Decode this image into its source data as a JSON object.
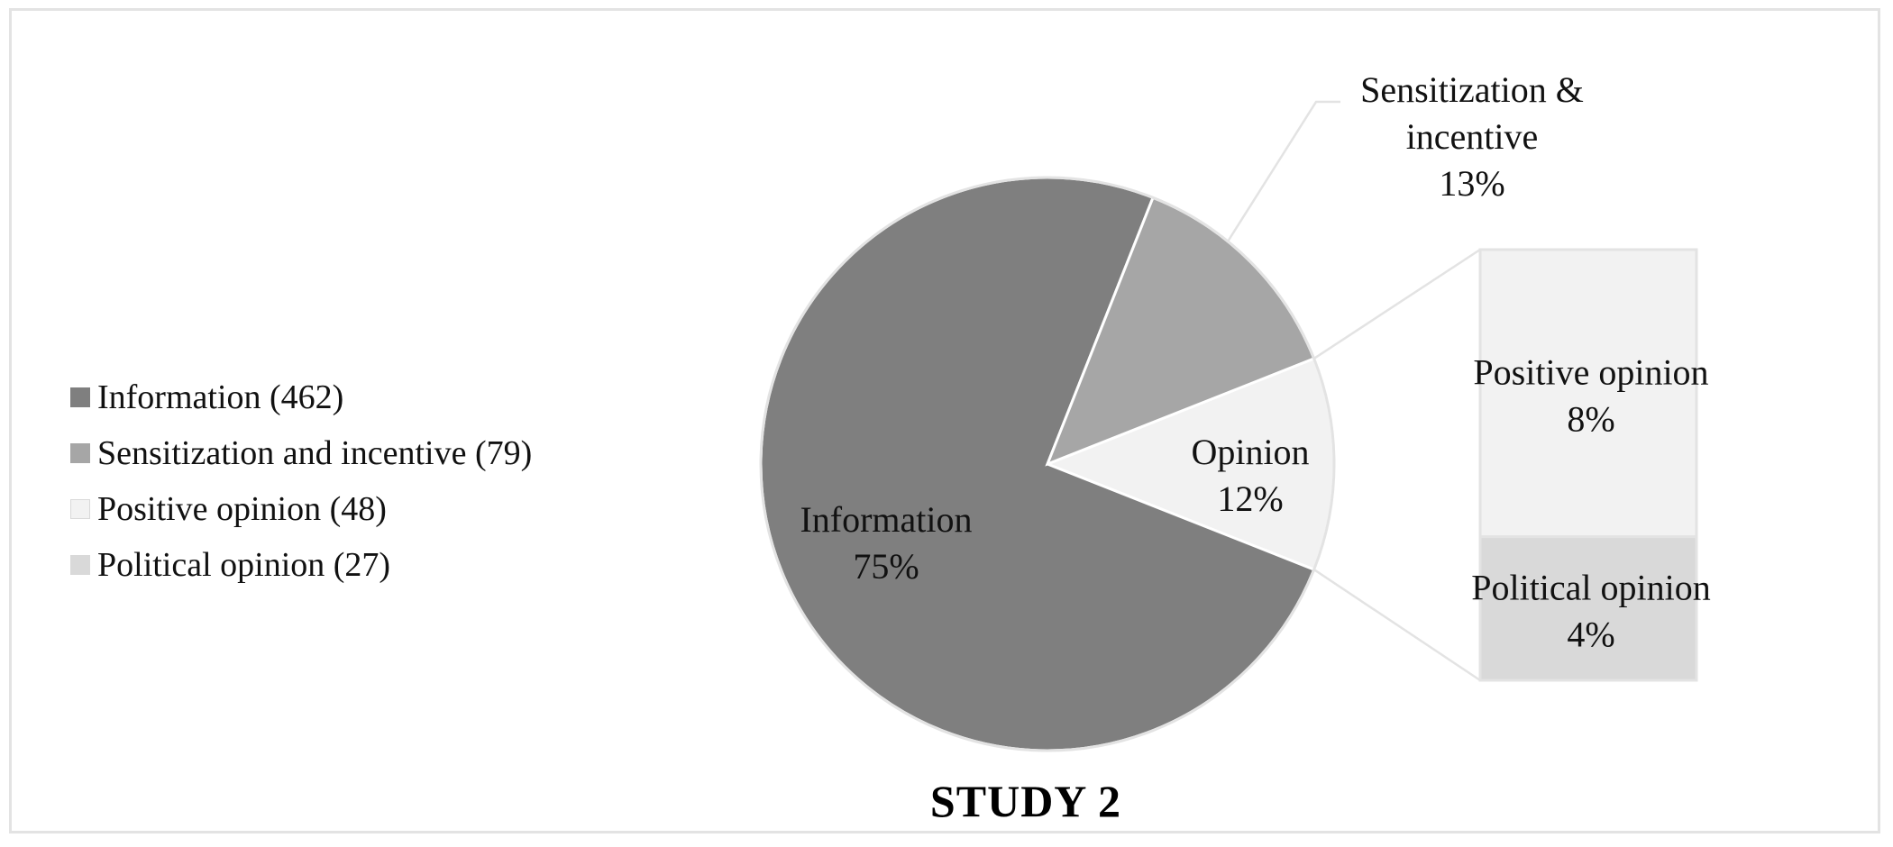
{
  "chart_data": {
    "type": "pie",
    "title": "STUDY 2",
    "subtype": "bar-of-pie",
    "pie": {
      "slices": [
        {
          "key": "information",
          "label": "Information",
          "percent_label": "75%",
          "value": 75,
          "color": "#7f7f7f"
        },
        {
          "key": "sensitization",
          "label": "Sensitization & incentive",
          "label_lines": [
            "Sensitization &",
            "incentive"
          ],
          "percent_label": "13%",
          "value": 13,
          "color": "#a6a6a6"
        },
        {
          "key": "opinion",
          "label": "Opinion",
          "percent_label": "12%",
          "value": 12,
          "color": "#f2f2f2"
        }
      ]
    },
    "bar": {
      "segments": [
        {
          "key": "positive",
          "label": "Positive opinion",
          "percent_label": "8%",
          "value": 8,
          "color": "#f2f2f2"
        },
        {
          "key": "political",
          "label": "Political opinion",
          "percent_label": "4%",
          "value": 4,
          "color": "#d9d9d9"
        }
      ]
    },
    "legend": {
      "position": "left",
      "items": [
        {
          "label": "Information (462)",
          "count": 462,
          "color": "#7f7f7f"
        },
        {
          "label": "Sensitization and incentive (79)",
          "count": 79,
          "color": "#a6a6a6"
        },
        {
          "label": "Positive opinion (48)",
          "count": 48,
          "color": "#f2f2f2"
        },
        {
          "label": "Political opinion (27)",
          "count": 27,
          "color": "#d9d9d9"
        }
      ]
    }
  }
}
